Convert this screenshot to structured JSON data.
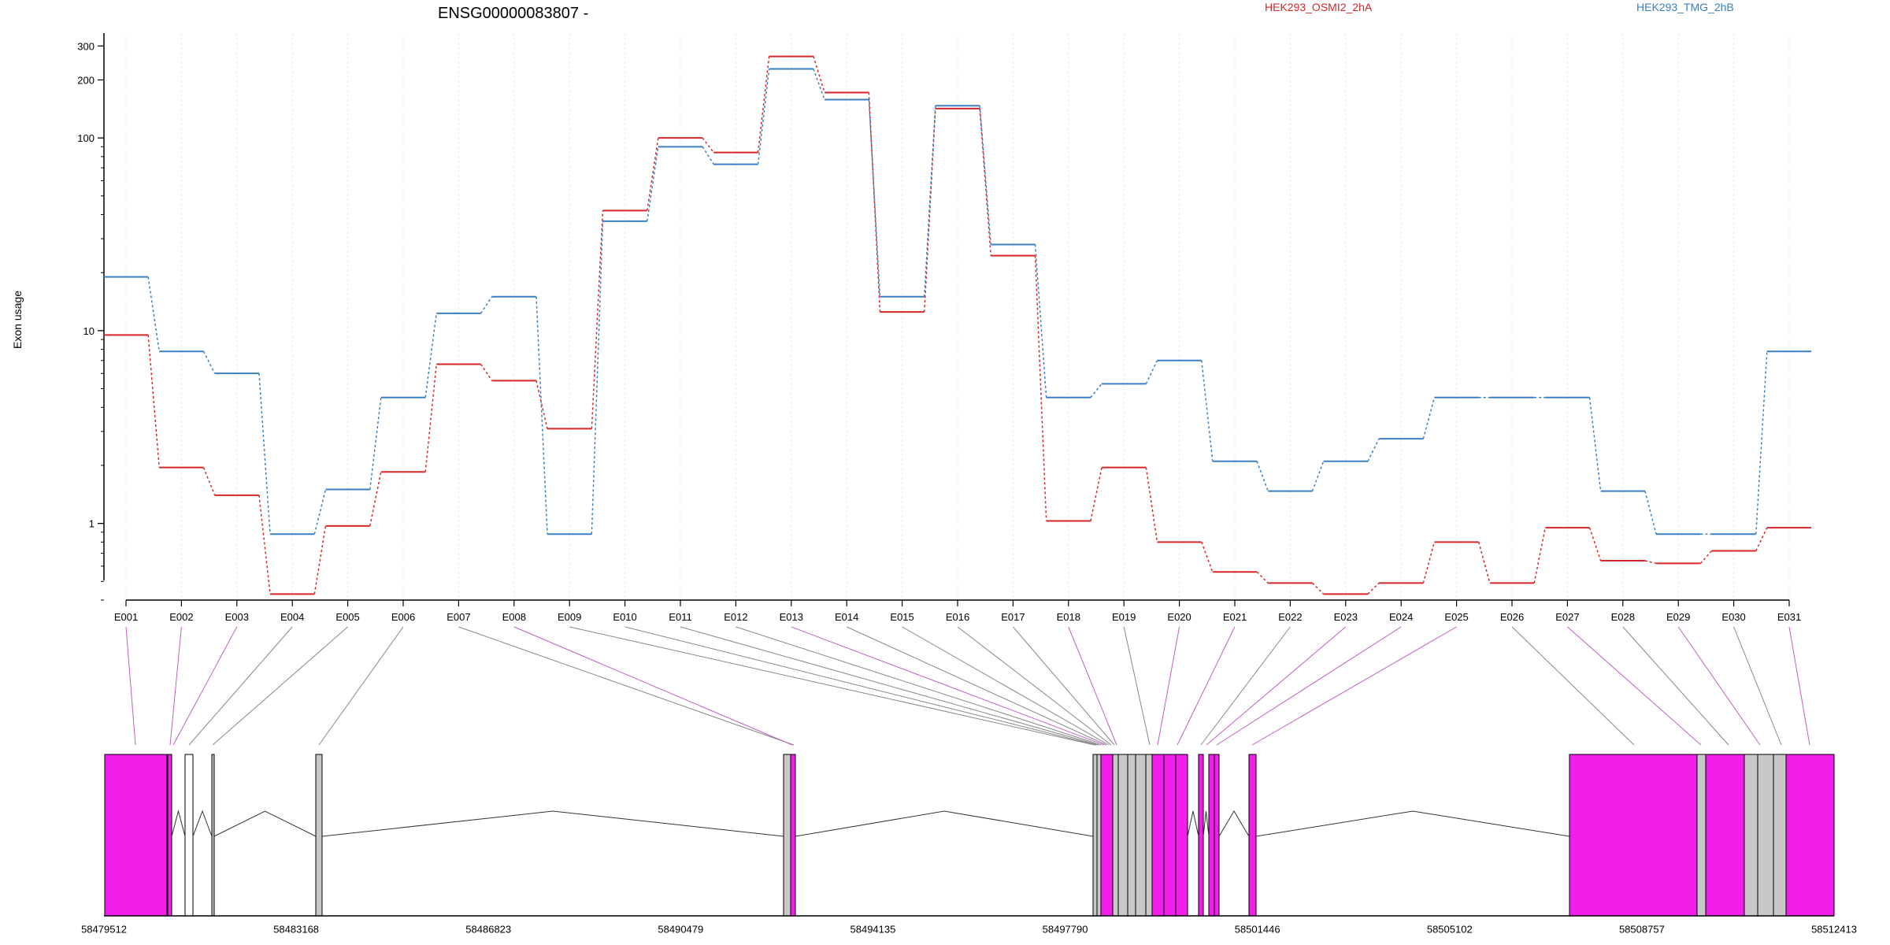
{
  "chart_data": {
    "type": "line",
    "title": "ENSG00000083807 -",
    "ylabel": "Exon usage",
    "yscale": "log",
    "yticks": [
      1,
      10,
      100,
      200,
      300
    ],
    "ylim": [
      0.4,
      350
    ],
    "categories": [
      "E001",
      "E002",
      "E003",
      "E004",
      "E005",
      "E006",
      "E007",
      "E008",
      "E009",
      "E010",
      "E011",
      "E012",
      "E013",
      "E014",
      "E015",
      "E016",
      "E017",
      "E018",
      "E019",
      "E020",
      "E021",
      "E022",
      "E023",
      "E024",
      "E025",
      "E026",
      "E027",
      "E028",
      "E029",
      "E030",
      "E031"
    ],
    "series": [
      {
        "name": "HEK293_OSMI2_2hA",
        "color": "#d62728",
        "values": [
          9.5,
          1.95,
          1.4,
          0.43,
          0.97,
          1.85,
          6.7,
          5.5,
          3.1,
          42,
          100,
          84,
          265,
          172,
          12.5,
          142,
          24.5,
          1.03,
          1.95,
          0.8,
          0.56,
          0.49,
          0.43,
          0.49,
          0.8,
          0.49,
          0.95,
          0.64,
          0.62,
          0.72,
          0.95
        ]
      },
      {
        "name": "HEK293_TMG_2hB",
        "color": "#3a7fc1",
        "values": [
          19,
          7.8,
          6.0,
          0.88,
          1.5,
          4.5,
          12.3,
          15,
          0.88,
          37,
          90,
          73,
          228,
          158,
          15,
          147,
          28,
          4.5,
          5.3,
          7.0,
          2.1,
          1.47,
          2.1,
          2.75,
          4.5,
          4.5,
          4.5,
          1.47,
          0.88,
          0.88,
          7.8
        ]
      }
    ],
    "gene_coordinates": {
      "tick_labels": [
        "58479512",
        "58483168",
        "58486823",
        "58490479",
        "58494135",
        "58497790",
        "58501446",
        "58505102",
        "58508757",
        "58512413"
      ],
      "range": [
        58479512,
        58512413
      ]
    }
  }
}
